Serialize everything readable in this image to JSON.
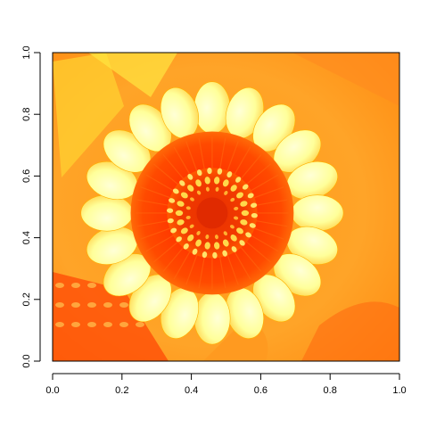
{
  "chart_data": {
    "type": "heatmap",
    "title": "",
    "xlabel": "",
    "ylabel": "",
    "xlim": [
      0.0,
      1.0
    ],
    "ylim": [
      0.0,
      1.0
    ],
    "x_ticks": [
      0.0,
      0.2,
      0.4,
      0.6,
      0.8,
      1.0
    ],
    "y_ticks": [
      0.0,
      0.2,
      0.4,
      0.6,
      0.8,
      1.0
    ],
    "x_tick_labels": [
      "0.0",
      "0.2",
      "0.4",
      "0.6",
      "0.8",
      "1.0"
    ],
    "y_tick_labels": [
      "0.0",
      "0.2",
      "0.4",
      "0.6",
      "0.8",
      "1.0"
    ],
    "grid": false,
    "legend": "none",
    "image": {
      "subject": "flower",
      "center": [
        0.46,
        0.48
      ],
      "petal_count": 20,
      "palette": [
        "#ffffc8",
        "#ffe066",
        "#ffb020",
        "#ff7a10",
        "#ff3d00",
        "#e62800"
      ]
    }
  }
}
